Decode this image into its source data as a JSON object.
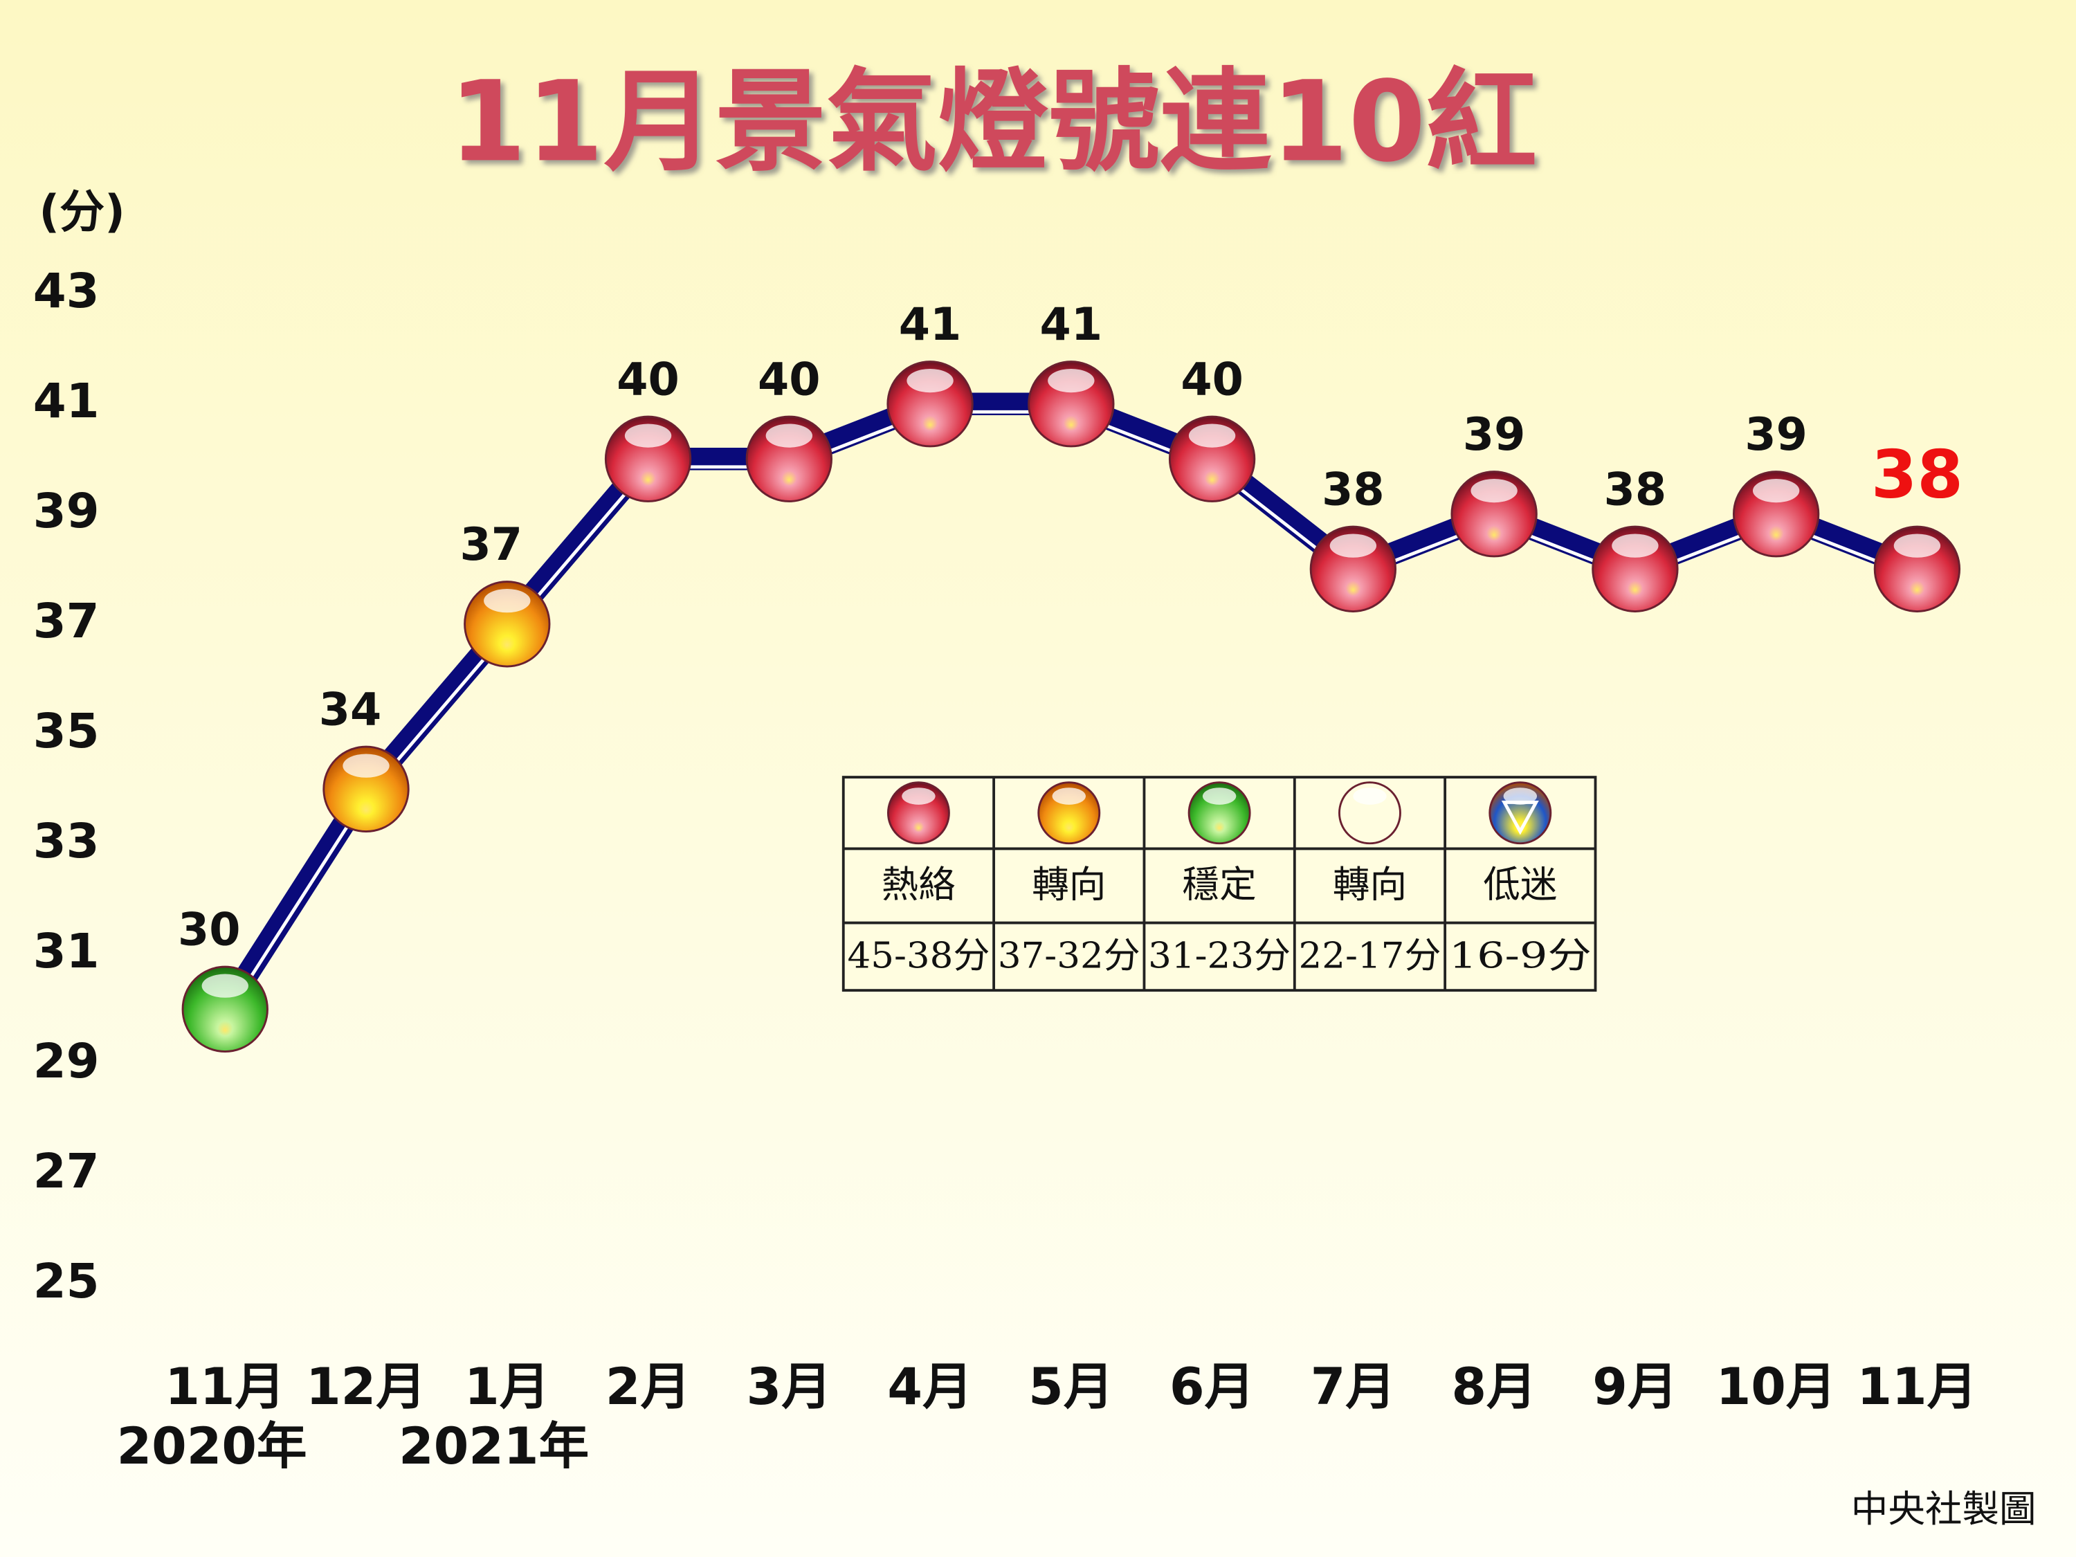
{
  "chart_data": {
    "type": "line",
    "title": "11月景氣燈號連10紅",
    "y_label": "(分)",
    "categories": [
      "11月",
      "12月",
      "1月",
      "2月",
      "3月",
      "4月",
      "5月",
      "6月",
      "7月",
      "8月",
      "9月",
      "10月",
      "11月"
    ],
    "year_labels": [
      {
        "index": 0,
        "label": "2020年"
      },
      {
        "index": 2,
        "label": "2021年"
      }
    ],
    "values": [
      30,
      34,
      37,
      40,
      40,
      41,
      41,
      40,
      38,
      39,
      38,
      39,
      38
    ],
    "point_colors": [
      "#3cb82a",
      "#f08a10",
      "#f08a10",
      "#d8283c",
      "#d8283c",
      "#d8283c",
      "#d8283c",
      "#d8283c",
      "#d8283c",
      "#d8283c",
      "#d8283c",
      "#d8283c",
      "#d8283c"
    ],
    "line_color": "#0a0a7a",
    "highlight_last_color": "#ee1111",
    "ylim": [
      25,
      43
    ],
    "yticks": [
      25,
      27,
      29,
      31,
      33,
      35,
      37,
      39,
      41,
      43
    ],
    "legend": [
      {
        "name": "熱絡",
        "range": "45-38分",
        "color": "#d8283c"
      },
      {
        "name": "轉向",
        "range": "37-32分",
        "color": "#f08a10"
      },
      {
        "name": "穩定",
        "range": "31-23分",
        "color": "#3cb82a"
      },
      {
        "name": "轉向",
        "range": "22-17分",
        "color": "#1f56c8",
        "top_color": "#f5d000"
      },
      {
        "name": "低迷",
        "range": "16-9分",
        "color": "#1f56c8",
        "symbol": "down-triangle"
      }
    ],
    "source": "中央社製圖"
  }
}
